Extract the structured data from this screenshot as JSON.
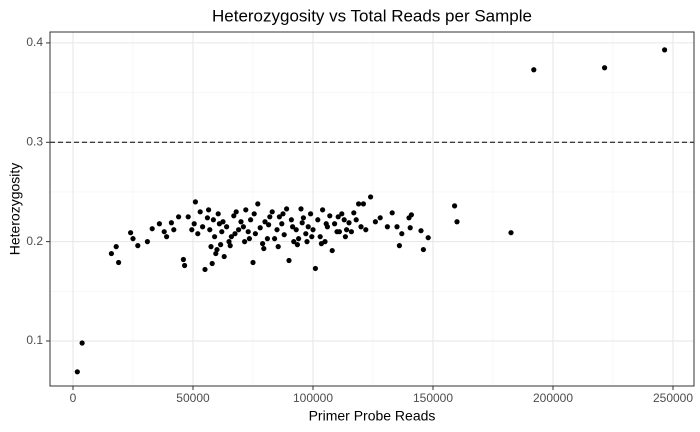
{
  "chart_data": {
    "type": "scatter",
    "title": "Heterozygosity vs Total Reads per Sample",
    "xlabel": "Primer Probe Reads",
    "ylabel": "Heterozygosity",
    "xlim": [
      -9583,
      258750
    ],
    "ylim": [
      0.0547,
      0.411
    ],
    "xticks": [
      0,
      50000,
      100000,
      150000,
      200000,
      250000
    ],
    "yticks": [
      0.1,
      0.2,
      0.3,
      0.4
    ],
    "grid": true,
    "color": "#000000",
    "hline": 0.3,
    "x": [
      1800,
      3800,
      192000,
      221500,
      246500,
      182500,
      159000,
      160000,
      148000,
      146000,
      145000,
      141000,
      140000,
      140500,
      136000,
      135000,
      137000,
      133000,
      131000,
      128000,
      124000,
      121000,
      119000,
      117000,
      115000,
      113000,
      110000,
      108000,
      105000,
      101000,
      98000,
      95000,
      92000,
      90000,
      87000,
      84000,
      82000,
      79000,
      75000,
      73000,
      70000,
      68000,
      65000,
      63000,
      60000,
      58000,
      55000,
      53000,
      51000,
      48000,
      46000,
      46500,
      44000,
      41000,
      38000,
      36000,
      33000,
      31000,
      27000,
      25000,
      24000,
      19000,
      18000,
      16000,
      39000,
      42000,
      52000,
      54000,
      56000,
      57000,
      59000,
      61000,
      62000,
      64000,
      66000,
      67000,
      69000,
      71000,
      72000,
      74000,
      76000,
      77000,
      78000,
      80000,
      81000,
      83000,
      85000,
      86000,
      88000,
      89000,
      91000,
      93000,
      94000,
      96000,
      97000,
      99000,
      100000,
      102000,
      103000,
      104000,
      106000,
      107000,
      109000,
      111000,
      112000,
      114000,
      116000,
      118000,
      120000,
      122000,
      126000,
      57500,
      59500,
      61500,
      65500,
      71500,
      79500,
      85500,
      93500,
      97500,
      103500,
      67500,
      73500,
      75500,
      81500,
      87500,
      91500,
      95500,
      99500,
      105500,
      110500,
      113500,
      56500,
      58500,
      60500,
      62500,
      49500,
      50500
    ],
    "values": [
      0.069,
      0.098,
      0.373,
      0.375,
      0.393,
      0.209,
      0.236,
      0.22,
      0.204,
      0.192,
      0.211,
      0.227,
      0.224,
      0.214,
      0.196,
      0.215,
      0.208,
      0.229,
      0.215,
      0.224,
      0.245,
      0.238,
      0.238,
      0.229,
      0.219,
      0.222,
      0.21,
      0.191,
      0.2,
      0.173,
      0.215,
      0.233,
      0.2,
      0.181,
      0.218,
      0.203,
      0.225,
      0.198,
      0.179,
      0.21,
      0.22,
      0.23,
      0.2,
      0.185,
      0.192,
      0.178,
      0.172,
      0.23,
      0.24,
      0.225,
      0.182,
      0.176,
      0.225,
      0.219,
      0.21,
      0.218,
      0.213,
      0.2,
      0.196,
      0.203,
      0.209,
      0.179,
      0.195,
      0.188,
      0.205,
      0.212,
      0.208,
      0.215,
      0.224,
      0.212,
      0.205,
      0.218,
      0.21,
      0.215,
      0.205,
      0.226,
      0.212,
      0.215,
      0.232,
      0.222,
      0.208,
      0.238,
      0.214,
      0.22,
      0.203,
      0.23,
      0.212,
      0.225,
      0.207,
      0.233,
      0.222,
      0.212,
      0.203,
      0.224,
      0.208,
      0.228,
      0.212,
      0.222,
      0.205,
      0.232,
      0.215,
      0.226,
      0.218,
      0.21,
      0.228,
      0.212,
      0.21,
      0.222,
      0.215,
      0.212,
      0.22,
      0.195,
      0.188,
      0.197,
      0.196,
      0.2,
      0.193,
      0.195,
      0.197,
      0.2,
      0.198,
      0.208,
      0.203,
      0.228,
      0.217,
      0.228,
      0.215,
      0.219,
      0.205,
      0.218,
      0.225,
      0.205,
      0.232,
      0.222,
      0.228,
      0.22,
      0.212,
      0.218
    ]
  }
}
